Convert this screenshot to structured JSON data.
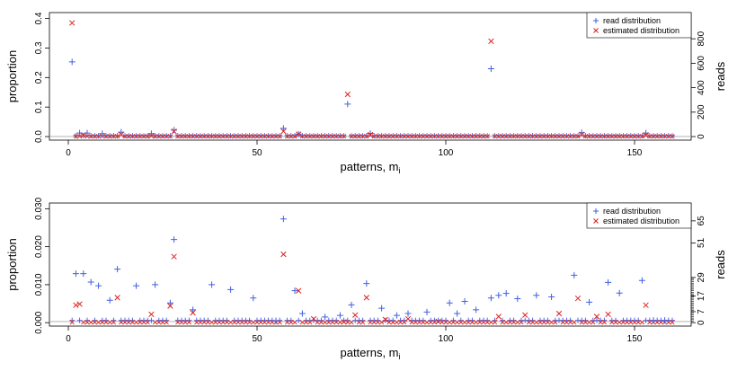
{
  "chart_data": [
    {
      "type": "scatter",
      "title": "",
      "xlabel": "patterns, m",
      "xlabel_sub": "i",
      "ylabel": "proportion",
      "ylabel_right": "reads",
      "xlim": [
        -5,
        165
      ],
      "ylim": [
        -0.012,
        0.42
      ],
      "x_ticks": [
        0,
        50,
        100,
        150
      ],
      "y_ticks": [
        "0.0",
        "0.1",
        "0.2",
        "0.3",
        "0.4"
      ],
      "y_tick_values": [
        0,
        0.1,
        0.2,
        0.3,
        0.4
      ],
      "right_ticks": [
        "0",
        "200",
        "400",
        "600",
        "800"
      ],
      "right_tick_proportions": [
        0,
        0.0828,
        0.1656,
        0.2484,
        0.3312
      ],
      "grid": false,
      "legend_position": "top-right",
      "series": [
        {
          "name": "read distribution",
          "color": "#4060e0",
          "marker": "plus",
          "x": [
            1,
            3,
            5,
            9,
            14,
            22,
            28,
            57,
            61,
            74,
            80,
            112,
            136,
            153
          ],
          "y": [
            0.253,
            0.012,
            0.012,
            0.01,
            0.015,
            0.01,
            0.022,
            0.028,
            0.008,
            0.11,
            0.011,
            0.23,
            0.013,
            0.012
          ]
        },
        {
          "name": "estimated distribution",
          "color": "#e02020",
          "marker": "x",
          "x": [
            1,
            4,
            14,
            22,
            28,
            57,
            61,
            74,
            80,
            112,
            136,
            153
          ],
          "y": [
            0.385,
            0.005,
            0.007,
            0.002,
            0.018,
            0.018,
            0.008,
            0.143,
            0.006,
            0.323,
            0.007,
            0.005
          ]
        }
      ],
      "baseline_value": 0.0003
    },
    {
      "type": "scatter",
      "title": "",
      "xlabel": "patterns, m",
      "xlabel_sub": "i",
      "ylabel": "proportion",
      "ylabel_right": "reads",
      "xlim": [
        -5,
        165
      ],
      "ylim": [
        -0.0009,
        0.0315
      ],
      "x_ticks": [
        0,
        50,
        100,
        150
      ],
      "y_ticks": [
        "0.000",
        "0.010",
        "0.020",
        "0.030"
      ],
      "y_tick_values": [
        0,
        0.01,
        0.02,
        0.03
      ],
      "right_ticks": [
        "0",
        "7",
        "17",
        "29",
        "51",
        "65"
      ],
      "right_tick_proportions": [
        0,
        0.0029,
        0.007,
        0.0119,
        0.021,
        0.0268
      ],
      "grid": false,
      "legend_position": "top-right",
      "series": [
        {
          "name": "read distribution",
          "color": "#4060e0",
          "marker": "plus",
          "x": [
            2,
            4,
            6,
            8,
            11,
            13,
            18,
            23,
            27,
            28,
            33,
            38,
            43,
            49,
            55,
            57,
            60,
            62,
            68,
            72,
            75,
            79,
            83,
            87,
            90,
            95,
            101,
            103,
            105,
            108,
            112,
            114,
            116,
            119,
            124,
            128,
            134,
            138,
            143,
            146,
            152,
            155,
            158
          ],
          "y": [
            0.0129,
            0.0129,
            0.0107,
            0.0097,
            0.0059,
            0.0141,
            0.0097,
            0.01,
            0.0052,
            0.0219,
            0.0034,
            0.01,
            0.0087,
            0.0065,
            0.0005,
            0.0273,
            0.0084,
            0.0024,
            0.0015,
            0.0019,
            0.0047,
            0.0103,
            0.0038,
            0.0019,
            0.0024,
            0.0028,
            0.0052,
            0.0024,
            0.0056,
            0.0034,
            0.0065,
            0.0072,
            0.0077,
            0.0063,
            0.0072,
            0.0068,
            0.0125,
            0.0054,
            0.0106,
            0.0078,
            0.0111,
            0.0006,
            0.0006
          ]
        },
        {
          "name": "estimated distribution",
          "color": "#e02020",
          "marker": "x",
          "x": [
            2,
            3,
            13,
            22,
            27,
            28,
            33,
            57,
            61,
            65,
            73,
            76,
            79,
            84,
            90,
            98,
            114,
            121,
            130,
            135,
            140,
            143,
            153
          ],
          "y": [
            0.0046,
            0.0049,
            0.0066,
            0.0022,
            0.0044,
            0.0174,
            0.0026,
            0.018,
            0.0084,
            0.001,
            0.0002,
            0.002,
            0.0066,
            0.0008,
            0.001,
            0.0003,
            0.0016,
            0.002,
            0.0024,
            0.0064,
            0.0016,
            0.0022,
            0.0046
          ]
        }
      ],
      "baseline_value": 0.0003
    }
  ]
}
